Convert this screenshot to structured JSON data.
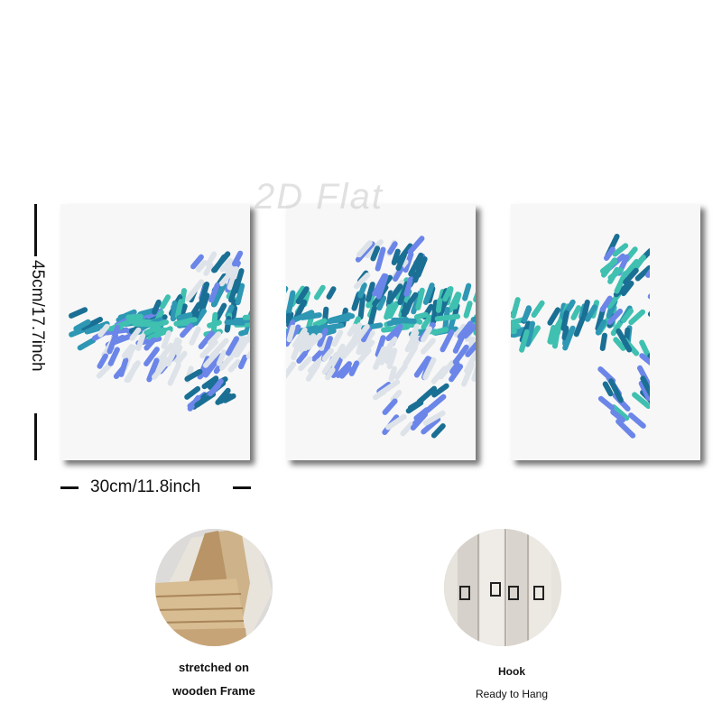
{
  "watermark": "2D Flat",
  "dimensions": {
    "height_label": "45cm/17.7inch",
    "width_label": "30cm/11.8inch"
  },
  "features": [
    {
      "caption_line1": "stretched on",
      "caption_line2": "wooden Frame"
    },
    {
      "caption_line1": "Hook",
      "caption_line2": "Ready to Hang"
    }
  ],
  "colors": {
    "teal_dark": "#1a6f94",
    "teal_mid": "#2d97b4",
    "aqua": "#3fc0b0",
    "periwinkle": "#6b86e8",
    "pale_gray": "#dde3e8",
    "canvas_bg": "#f7f7f7"
  }
}
